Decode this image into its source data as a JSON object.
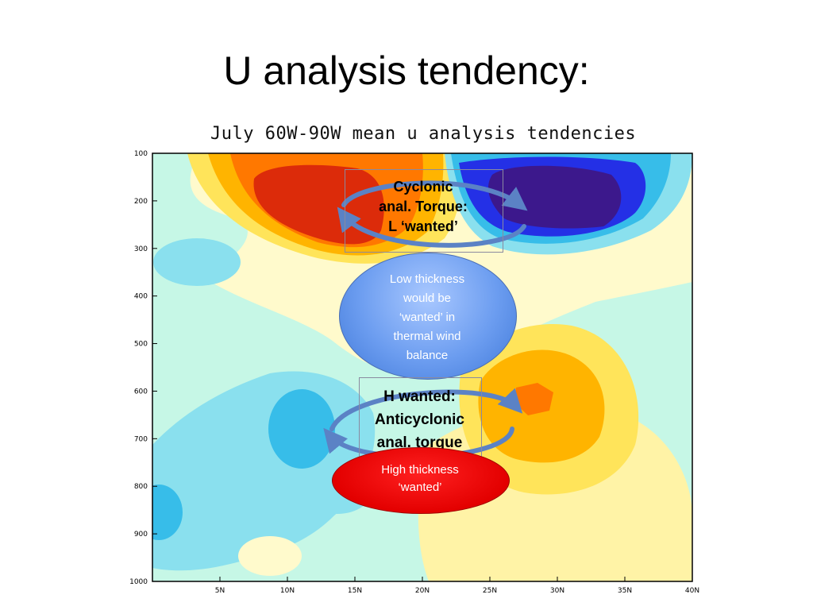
{
  "slide": {
    "title": "U analysis tendency:"
  },
  "chart_data": {
    "type": "heatmap",
    "title": "July 60W-90W mean u analysis tendencies",
    "x_ticks": [
      "5N",
      "10N",
      "15N",
      "20N",
      "25N",
      "30N",
      "35N",
      "40N"
    ],
    "y_ticks": [
      "100",
      "200",
      "300",
      "400",
      "500",
      "600",
      "700",
      "800",
      "900",
      "1000"
    ],
    "xlim": [
      0,
      40
    ],
    "ylim": [
      100,
      1000
    ],
    "y_reversed": true,
    "features": [
      {
        "kind": "positive max",
        "x": 12,
        "y": 230,
        "color": "#dc2b0a"
      },
      {
        "kind": "negative min",
        "x": 29,
        "y": 230,
        "color": "#3c188c"
      },
      {
        "kind": "positive max",
        "x": 28.5,
        "y": 610,
        "color": "#ff6a00"
      },
      {
        "kind": "negative min",
        "x": 9.5,
        "y": 680,
        "color": "#37bde9"
      },
      {
        "kind": "negative min",
        "x": 0.5,
        "y": 870,
        "color": "#37bde9"
      }
    ],
    "palette": [
      "#3c188c",
      "#2430e6",
      "#37bde9",
      "#8ae0ee",
      "#c6f7e6",
      "#fffacc",
      "#ffe45a",
      "#ffb400",
      "#ff7800",
      "#dc2b0a"
    ]
  },
  "annotations": {
    "top_box": [
      "Cyclonic",
      "anal. Torque:",
      "L ‘wanted’"
    ],
    "blue_ellipse": [
      "Low thickness",
      "would be",
      "‘wanted’ in",
      "thermal wind",
      "balance"
    ],
    "bottom_box": [
      "H wanted:",
      "Anticyclonic",
      "anal. torque"
    ],
    "red_ellipse": [
      "High thickness",
      "‘wanted’"
    ]
  }
}
